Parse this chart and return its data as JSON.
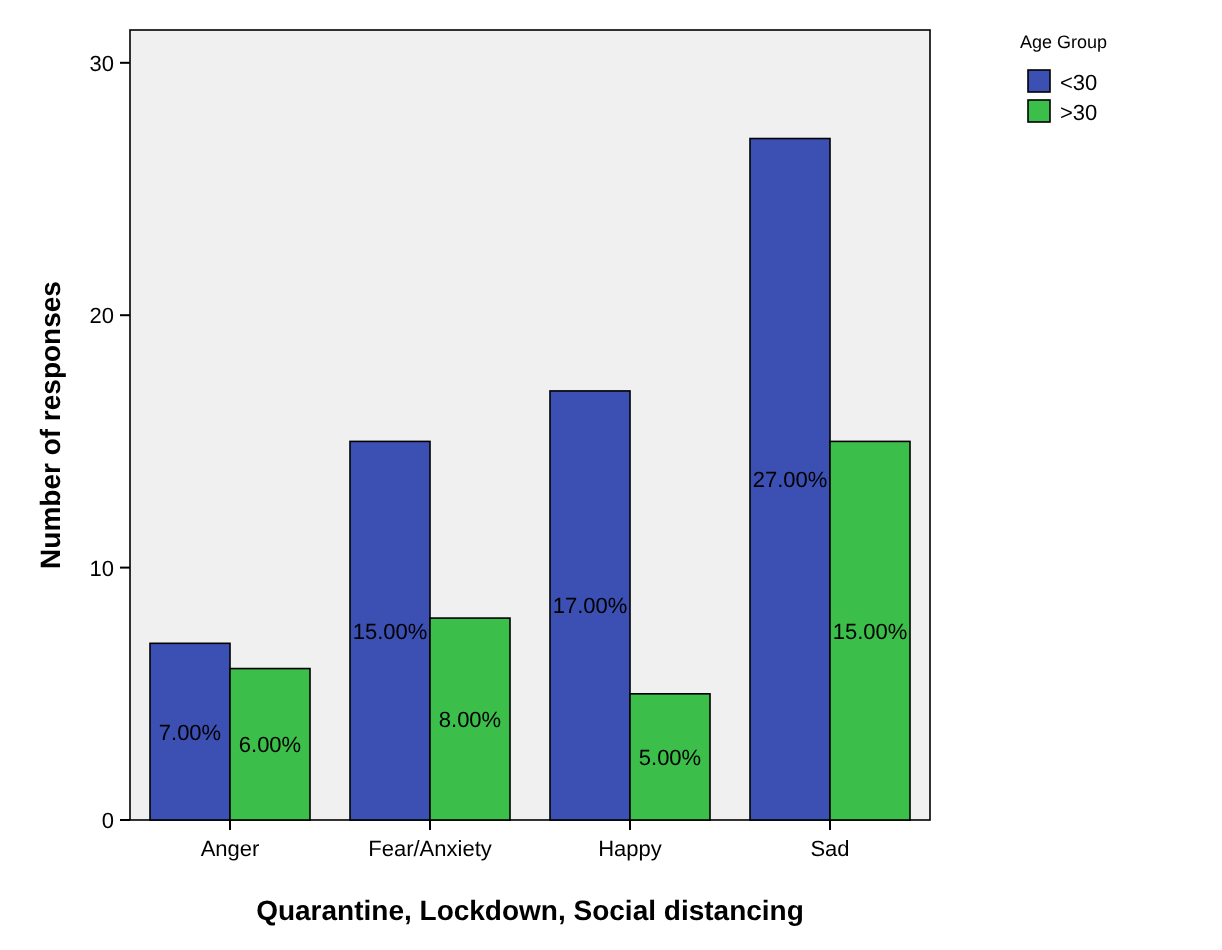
{
  "chart_data": {
    "type": "bar",
    "xlabel": "Quarantine, Lockdown, Social distancing",
    "ylabel": "Number of responses",
    "legend_title": "Age Group",
    "legend": "top right",
    "categories": [
      "Anger",
      "Fear/Anxiety",
      "Happy",
      "Sad"
    ],
    "series": [
      {
        "name": "<30",
        "color": "#3c50b4",
        "values": [
          7,
          15,
          17,
          27
        ],
        "value_labels": [
          "7.00%",
          "15.00%",
          "17.00%",
          "27.00%"
        ]
      },
      {
        "name": ">30",
        "color": "#3cbf4a",
        "values": [
          6,
          8,
          5,
          15
        ],
        "value_labels": [
          "6.00%",
          "8.00%",
          "5.00%",
          "15.00%"
        ]
      }
    ],
    "ylim": [
      0,
      31.3
    ],
    "yticks": [
      0,
      10,
      20,
      30
    ]
  }
}
